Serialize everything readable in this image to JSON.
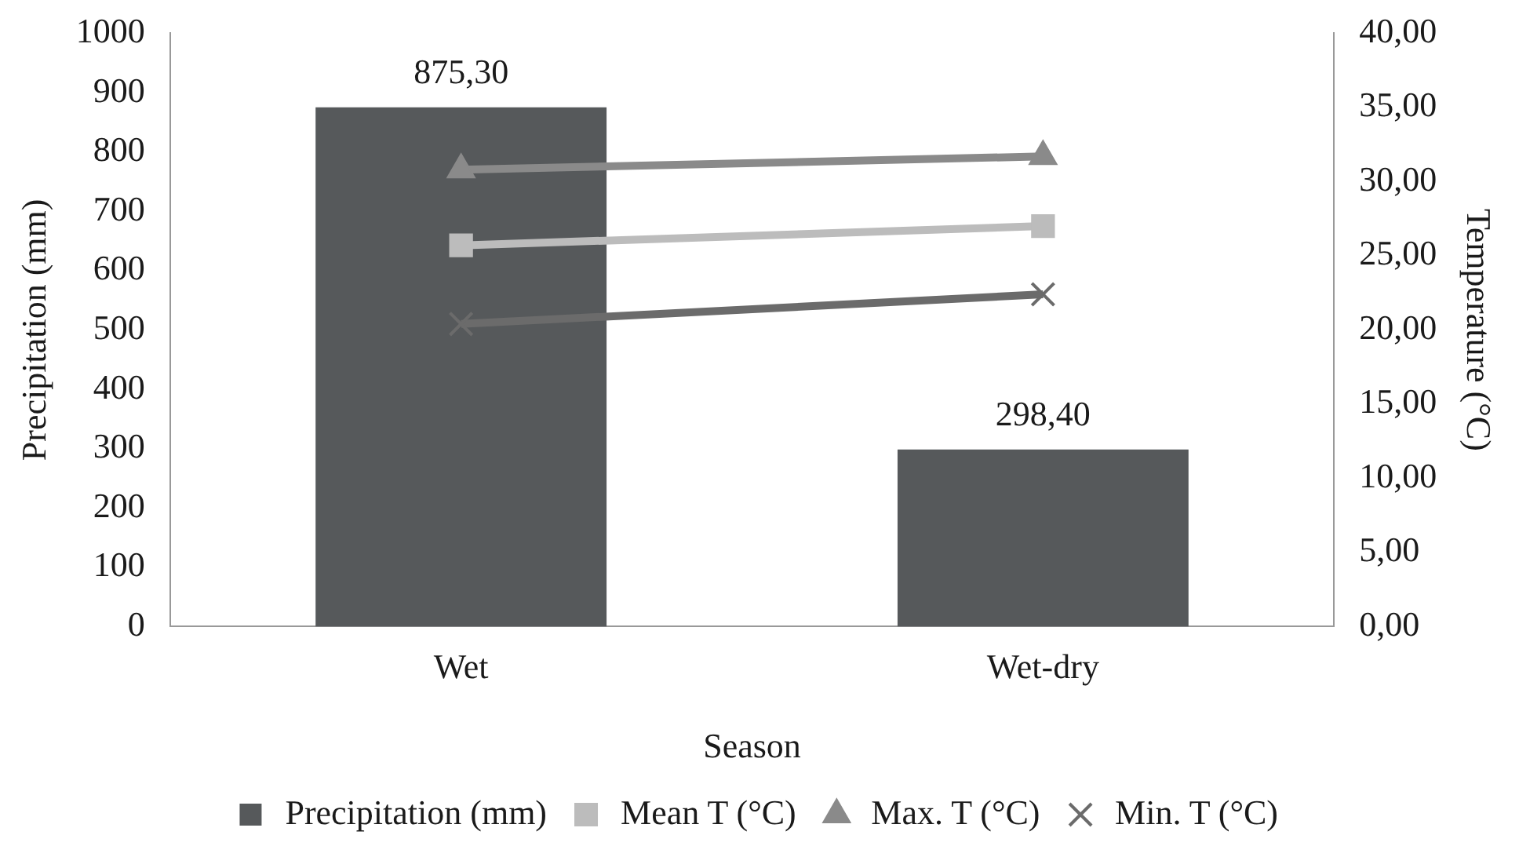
{
  "chart_data": {
    "type": "bar",
    "xlabel": "Season",
    "ylabel": "Precipitation (mm)",
    "y2label": "Temperature (°C)",
    "categories": [
      "Wet",
      "Wet-dry"
    ],
    "series": [
      {
        "name": "Precipitation (mm)",
        "color": "#56595b",
        "values": [
          875.3,
          298.4
        ],
        "value_labels": [
          "875,30",
          "298,40"
        ]
      },
      {
        "name": "Mean T (°C)",
        "type": "line",
        "axis": "y2",
        "color": "#bcbcbc",
        "marker": "square",
        "values": [
          25.7,
          27.0
        ]
      },
      {
        "name": "Max. T (°C)",
        "type": "line",
        "axis": "y2",
        "color": "#8a8a8a",
        "marker": "triangle",
        "values": [
          30.8,
          31.7
        ]
      },
      {
        "name": "Min. T (°C)",
        "type": "line",
        "axis": "y2",
        "color": "#6b6b6b",
        "marker": "cross",
        "values": [
          20.4,
          22.4
        ]
      }
    ],
    "ylim": [
      0,
      1000
    ],
    "yticks": [
      0,
      100,
      200,
      300,
      400,
      500,
      600,
      700,
      800,
      900,
      1000
    ],
    "y2lim": [
      0,
      40
    ],
    "y2ticks": [
      {
        "value": 0,
        "label": "0,00"
      },
      {
        "value": 5,
        "label": "5,00"
      },
      {
        "value": 10,
        "label": "10,00"
      },
      {
        "value": 15,
        "label": "15,00"
      },
      {
        "value": 20,
        "label": "20,00"
      },
      {
        "value": 25,
        "label": "25,00"
      },
      {
        "value": 30,
        "label": "30,00"
      },
      {
        "value": 35,
        "label": "35,00"
      },
      {
        "value": 40,
        "label": "40,00"
      }
    ],
    "grid": false,
    "legend": "bottom"
  }
}
